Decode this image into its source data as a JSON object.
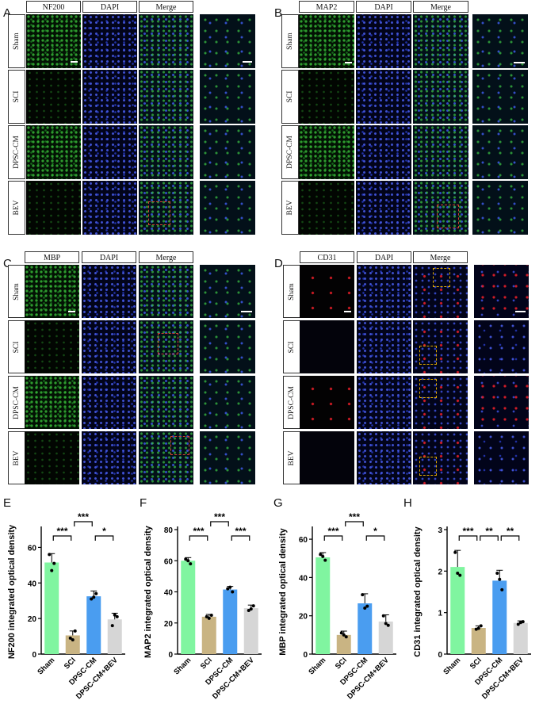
{
  "panels": [
    {
      "letter": "A",
      "headers": [
        "NF200",
        "DAPI",
        "Merge"
      ],
      "rows": [
        "Sham",
        "SCI",
        "DPSC-CM",
        "BEV"
      ]
    },
    {
      "letter": "B",
      "headers": [
        "MAP2",
        "DAPI",
        "Merge"
      ],
      "rows": [
        "Sham",
        "SCI",
        "DPSC-CM",
        "BEV"
      ]
    },
    {
      "letter": "C",
      "headers": [
        "MBP",
        "DAPI",
        "Merge"
      ],
      "rows": [
        "Sham",
        "SCI",
        "DPSC-CM",
        "BEV"
      ]
    },
    {
      "letter": "D",
      "headers": [
        "CD31",
        "DAPI",
        "Merge"
      ],
      "rows": [
        "Sham",
        "SCI",
        "DPSC-CM",
        "BEV"
      ]
    }
  ],
  "chart_data": [
    {
      "letter": "E",
      "type": "bar",
      "categories": [
        "Sham",
        "SCI",
        "DPSC-CM",
        "DPSC-CM+BEV"
      ],
      "values": [
        51.5,
        10.5,
        32.5,
        19.5
      ],
      "errors": [
        5,
        2.5,
        3,
        3.5
      ],
      "points": [
        [
          56,
          51,
          47
        ],
        [
          9,
          13,
          8
        ],
        [
          31,
          34,
          32
        ],
        [
          16,
          21,
          22
        ]
      ],
      "ylabel": "NF200  integrated optical density",
      "ylim": [
        0,
        70
      ],
      "yticks": [
        0,
        20,
        40,
        60
      ],
      "sig": [
        {
          "a": 0,
          "b": 1,
          "t": "***",
          "level": 0
        },
        {
          "a": 1,
          "b": 2,
          "t": "***",
          "level": 1
        },
        {
          "a": 2,
          "b": 3,
          "t": "*",
          "level": 0
        }
      ]
    },
    {
      "letter": "F",
      "type": "bar",
      "categories": [
        "Sham",
        "SCI",
        "DPSC-CM",
        "DPSC-CM+BEV"
      ],
      "values": [
        60,
        24,
        41.5,
        29.5
      ],
      "errors": [
        2,
        1.5,
        2,
        2
      ],
      "points": [
        [
          61,
          58,
          60
        ],
        [
          24,
          25,
          23
        ],
        [
          42,
          40,
          43
        ],
        [
          28,
          31,
          29
        ]
      ],
      "ylabel": "MAP2  integrated optical density",
      "ylim": [
        0,
        80
      ],
      "yticks": [
        0,
        20,
        40,
        60,
        80
      ],
      "sig": [
        {
          "a": 0,
          "b": 1,
          "t": "***",
          "level": 0
        },
        {
          "a": 1,
          "b": 2,
          "t": "***",
          "level": 1
        },
        {
          "a": 2,
          "b": 3,
          "t": "***",
          "level": 0
        }
      ]
    },
    {
      "letter": "G",
      "type": "bar",
      "categories": [
        "Sham",
        "SCI",
        "DPSC-CM",
        "DPSC-CM+BEV"
      ],
      "values": [
        50.5,
        10,
        26.5,
        17
      ],
      "errors": [
        2.5,
        2,
        5,
        3.5
      ],
      "points": [
        [
          52,
          49,
          51
        ],
        [
          11,
          9,
          10
        ],
        [
          31,
          25,
          24
        ],
        [
          20,
          15,
          16
        ]
      ],
      "ylabel": "MBP integrated optical density",
      "ylim": [
        0,
        65
      ],
      "yticks": [
        0,
        20,
        40,
        60
      ],
      "sig": [
        {
          "a": 0,
          "b": 1,
          "t": "***",
          "level": 0
        },
        {
          "a": 1,
          "b": 2,
          "t": "***",
          "level": 1
        },
        {
          "a": 2,
          "b": 3,
          "t": "*",
          "level": 0
        }
      ]
    },
    {
      "letter": "H",
      "type": "bar",
      "categories": [
        "Sham",
        "SCI",
        "DPSC-CM",
        "DPSC-CM+BEV"
      ],
      "values": [
        2.1,
        0.63,
        1.77,
        0.75
      ],
      "errors": [
        0.4,
        0.05,
        0.25,
        0.05
      ],
      "points": [
        [
          2.45,
          1.9,
          1.95
        ],
        [
          0.6,
          0.68,
          0.62
        ],
        [
          1.95,
          1.55,
          1.8
        ],
        [
          0.72,
          0.78,
          0.76
        ]
      ],
      "ylabel": "CD31  integrated optical density",
      "ylim": [
        0,
        3
      ],
      "yticks": [
        0,
        1,
        2,
        3
      ],
      "sig": [
        {
          "a": 0,
          "b": 1,
          "t": "***",
          "level": 0
        },
        {
          "a": 1,
          "b": 2,
          "t": "**",
          "level": 0
        },
        {
          "a": 2,
          "b": 3,
          "t": "**",
          "level": 0
        }
      ]
    }
  ],
  "colors": {
    "sham": "#80f5a0",
    "sci": "#c9b483",
    "dpsc_cm": "#4a9df0",
    "dpsc_cm_bev": "#d6d6d6"
  }
}
